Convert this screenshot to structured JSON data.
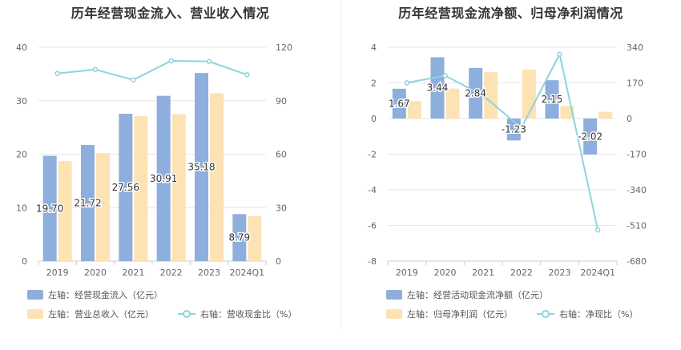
{
  "charts": [
    {
      "title": "历年经营现金流入、营业收入情况",
      "legend": [
        {
          "label": "左轴：经营现金流入（亿元）",
          "kind": "bar",
          "color": "#8eaedd"
        },
        {
          "label": "左轴：营业总收入（亿元）",
          "kind": "bar",
          "color": "#fde2b3"
        },
        {
          "label": "右轴：营收现金比（%）",
          "kind": "line",
          "color": "#8fd3dd"
        }
      ]
    },
    {
      "title": "历年经营现金流净额、归母净利润情况",
      "legend": [
        {
          "label": "左轴：经营活动现金流净额（亿元）",
          "kind": "bar",
          "color": "#8eaedd"
        },
        {
          "label": "左轴：归母净利润（亿元）",
          "kind": "bar",
          "color": "#fde2b3"
        },
        {
          "label": "右轴：净现比（%）",
          "kind": "line",
          "color": "#8fd3dd"
        }
      ]
    }
  ],
  "chart_data": [
    {
      "type": "bar",
      "title": "历年经营现金流入、营业收入情况",
      "categories": [
        "2019",
        "2020",
        "2021",
        "2022",
        "2023",
        "2024Q1"
      ],
      "ylim_left": [
        0,
        40
      ],
      "yticks_left": [
        0,
        10,
        20,
        30,
        40
      ],
      "ylim_right": [
        0,
        120
      ],
      "yticks_right": [
        0,
        30,
        60,
        90,
        120
      ],
      "grid": true,
      "legend_position": "bottom",
      "series": [
        {
          "name": "左轴：经营现金流入（亿元）",
          "axis": "left",
          "kind": "bar",
          "color": "#8eaedd",
          "values": [
            19.7,
            21.72,
            27.56,
            30.91,
            35.18,
            8.79
          ],
          "labels": [
            "19.70",
            "21.72",
            "27.56",
            "30.91",
            "35.18",
            "8.79"
          ]
        },
        {
          "name": "左轴：营业总收入（亿元）",
          "axis": "left",
          "kind": "bar",
          "color": "#fde2b3",
          "values": [
            18.7,
            20.2,
            27.1,
            27.5,
            31.4,
            8.4
          ]
        },
        {
          "name": "右轴：营收现金比（%）",
          "axis": "right",
          "kind": "line",
          "color": "#8fd3dd",
          "values": [
            105.3,
            107.5,
            101.7,
            112.4,
            112.0,
            104.6
          ]
        }
      ]
    },
    {
      "type": "bar",
      "title": "历年经营现金流净额、归母净利润情况",
      "categories": [
        "2019",
        "2020",
        "2021",
        "2022",
        "2023",
        "2024Q1"
      ],
      "ylim_left": [
        -8,
        4
      ],
      "yticks_left": [
        -8,
        -6,
        -4,
        -2,
        0,
        2,
        4
      ],
      "ylim_right": [
        -680,
        340
      ],
      "yticks_right": [
        -680,
        -510,
        -340,
        -170,
        0,
        170,
        340
      ],
      "grid": true,
      "legend_position": "bottom",
      "series": [
        {
          "name": "左轴：经营活动现金流净额（亿元）",
          "axis": "left",
          "kind": "bar",
          "color": "#8eaedd",
          "values": [
            1.67,
            3.44,
            2.84,
            -1.23,
            2.15,
            -2.02
          ],
          "labels": [
            "1.67",
            "3.44",
            "2.84",
            "-1.23",
            "2.15",
            "-2.02"
          ]
        },
        {
          "name": "左轴：归母净利润（亿元）",
          "axis": "left",
          "kind": "bar",
          "color": "#fde2b3",
          "values": [
            0.98,
            1.68,
            2.6,
            2.75,
            0.7,
            0.38
          ]
        },
        {
          "name": "右轴：净现比（%）",
          "axis": "right",
          "kind": "line",
          "color": "#8fd3dd",
          "values": [
            170.4,
            204.8,
            109.2,
            -44.7,
            307.1,
            -531.6
          ]
        }
      ]
    }
  ]
}
